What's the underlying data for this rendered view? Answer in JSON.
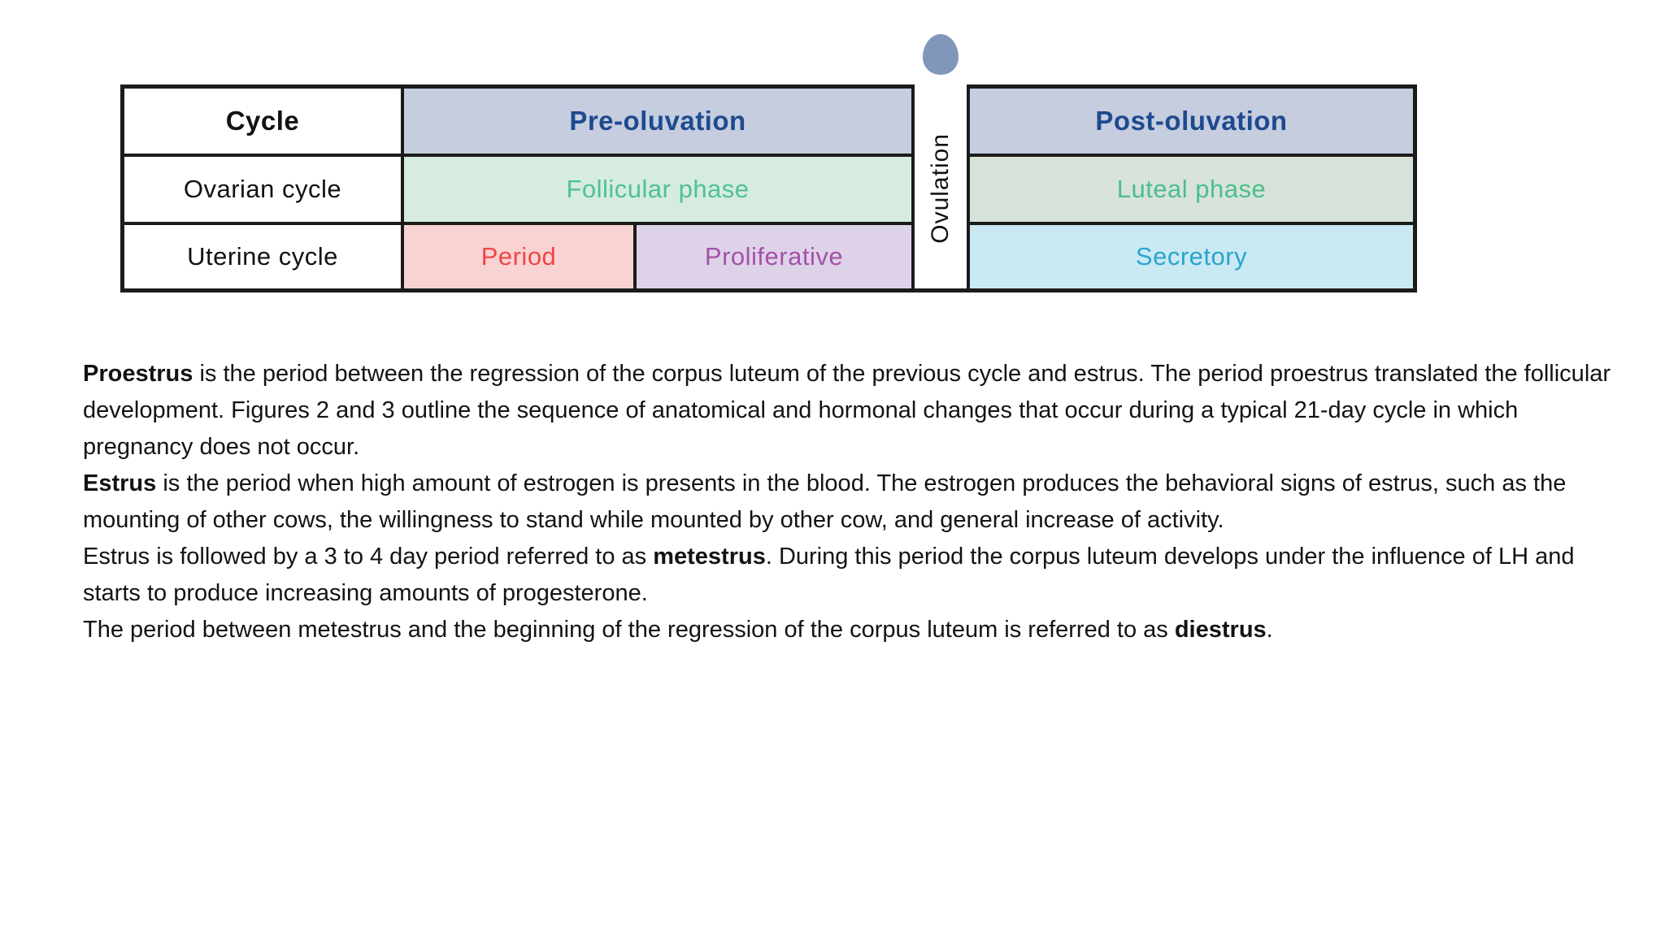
{
  "table": {
    "cycle": "Cycle",
    "pre_oluvation": "Pre-oluvation",
    "ovulation": "Ovulation",
    "post_oluvation": "Post-oluvation",
    "ovarian_cycle": "Ovarian cycle",
    "follicular_phase": "Follicular phase",
    "luteal_phase": "Luteal phase",
    "uterine_cycle": "Uterine cycle",
    "period": "Period",
    "proliferative": "Proliferative",
    "secretory": "Secretory"
  },
  "icons": {
    "ovum": "ovum-icon"
  },
  "colors": {
    "border": "#1b1b1b",
    "header_bg": "#c5cdde",
    "header_text": "#1e4a8f",
    "follicular_bg": "#d5ecdf",
    "follicular_text": "#4fc194",
    "luteal_bg": "#d7e3d9",
    "luteal_text": "#4cbd8e",
    "period_bg": "#f9d3d3",
    "period_text": "#f04545",
    "proliferative_bg": "#ded2e8",
    "proliferative_text": "#a452aa",
    "secretory_bg": "#c9e9f3",
    "secretory_text": "#2aa4cd",
    "ovum": "#8096ba"
  },
  "paragraphs": [
    {
      "segments": [
        {
          "t": "Proestrus",
          "b": true
        },
        {
          "t": " is the period between the regression of the corpus luteum of the previous cycle and estrus. The period proestrus translated the follicular development. Figures 2 and 3 outline the sequence of anatomical and hormonal changes that occur during a typical 21-day cycle in which pregnancy does not occur.",
          "b": false
        }
      ]
    },
    {
      "segments": [
        {
          "t": "Estrus",
          "b": true
        },
        {
          "t": " is the period when high amount of estrogen is presents in the blood. The estrogen produces the behavioral signs of estrus, such as the mounting of other cows, the willingness to stand while mounted by other cow, and general increase of activity.",
          "b": false
        }
      ]
    },
    {
      "segments": [
        {
          "t": "Estrus is followed by a 3 to 4 day period referred to as ",
          "b": false
        },
        {
          "t": "metestrus",
          "b": true
        },
        {
          "t": ". During this period the corpus luteum develops under the influence of LH and starts to produce increasing amounts of progesterone.",
          "b": false
        }
      ]
    },
    {
      "segments": [
        {
          "t": "The period between metestrus and the beginning of the regression of the corpus luteum is referred to as ",
          "b": false
        },
        {
          "t": "diestrus",
          "b": true
        },
        {
          "t": ".",
          "b": false
        }
      ]
    }
  ]
}
